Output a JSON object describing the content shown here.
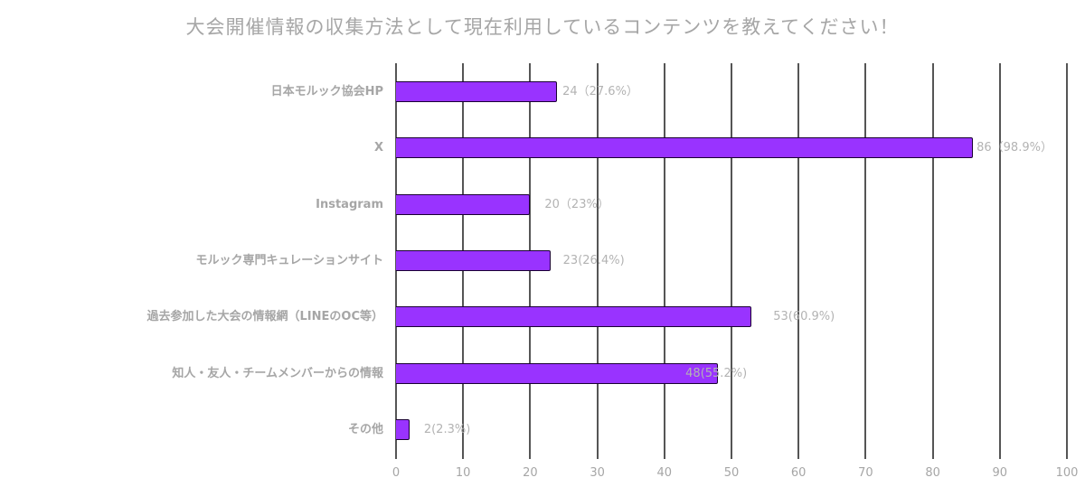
{
  "chart_data": {
    "type": "bar",
    "orientation": "horizontal",
    "title": "大会開催情報の収集方法として現在利用しているコンテンツを教えてください！",
    "xlabel": "",
    "ylabel": "",
    "xlim": [
      0,
      100
    ],
    "x_ticks": [
      "0",
      "10",
      "20",
      "30",
      "40",
      "50",
      "60",
      "70",
      "80",
      "90",
      "100"
    ],
    "grid": true,
    "legend": null,
    "bar_color": "#9933ff",
    "categories": [
      "日本モルック協会HP",
      "X",
      "Instagram",
      "モルック専門キュレーションサイト",
      "過去参加した大会の情報網（LINEのOC等）",
      "知人・友人・チームメンバーからの情報",
      "その他"
    ],
    "values": [
      24,
      86,
      20,
      23,
      53,
      48,
      2
    ],
    "data_labels": [
      "24（27.6%）",
      "86（98.9%）",
      "20（23%）",
      "23(26.4%)",
      "53(60.9%)",
      "48(55.2%)",
      "2(2.3%)"
    ]
  }
}
